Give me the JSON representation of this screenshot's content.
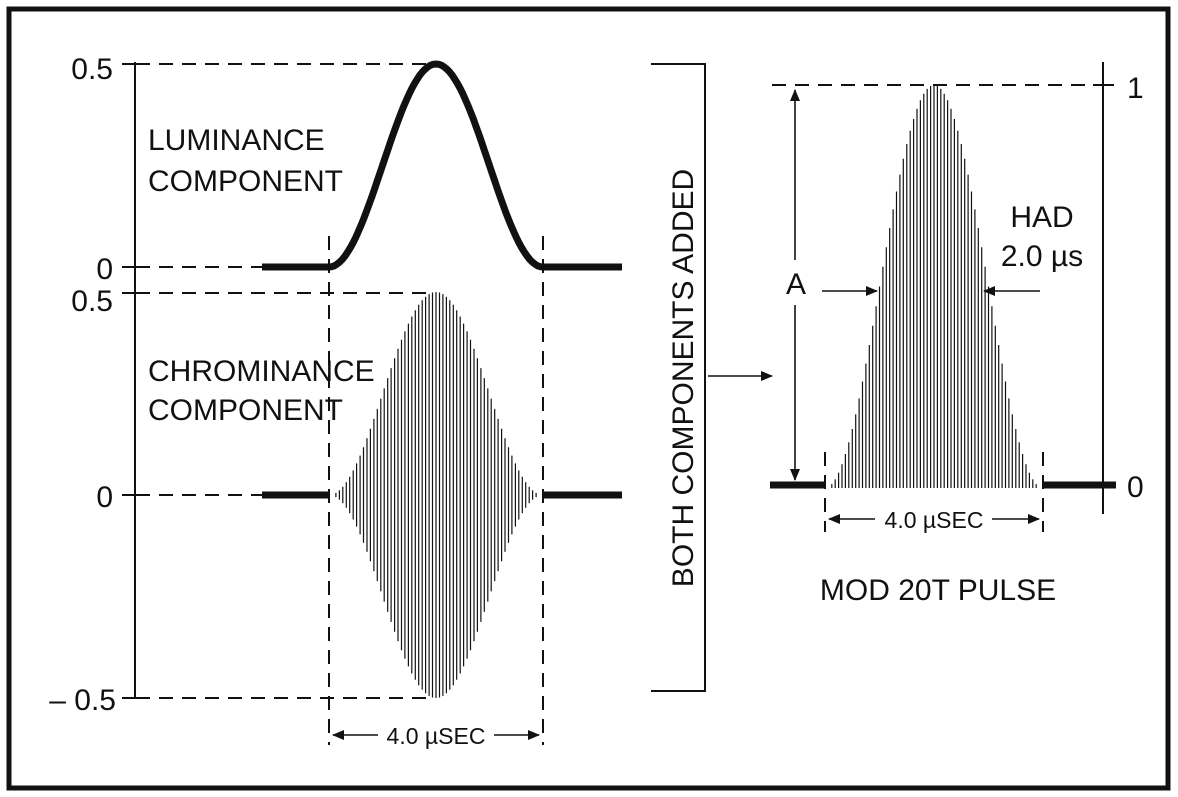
{
  "left_axis": {
    "luma_top": "0.5",
    "luma_zero": "0",
    "chroma_top": "0.5",
    "chroma_zero": "0",
    "chroma_bottom": "– 0.5"
  },
  "luminance": {
    "line1": "LUMINANCE",
    "line2": "COMPONENT"
  },
  "chrominance": {
    "line1": "CHROMINANCE",
    "line2": "COMPONENT"
  },
  "left_duration": "4.0 µSEC",
  "middle_label": "BOTH COMPONENTS ADDED",
  "right": {
    "top_value": "1",
    "zero_value": "0",
    "amplitude_label": "A",
    "had_line1": "HAD",
    "had_line2": "2.0 µs",
    "duration": "4.0 µSEC",
    "caption": "MOD 20T PULSE"
  },
  "colors": {
    "ink": "#111111",
    "background": "#ffffff"
  }
}
